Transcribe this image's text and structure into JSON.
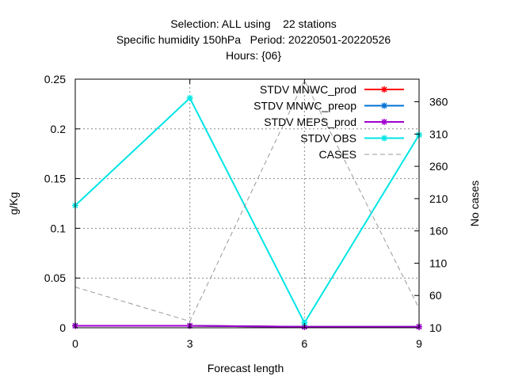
{
  "chart_data": {
    "type": "line",
    "title_lines": [
      "Selection: ALL using    22 stations",
      "Specific humidity 150hPa   Period: 20220501-20220526",
      "Hours: {06}"
    ],
    "xlabel": "Forecast length",
    "ylabel": "g/Kg",
    "y2label": "No cases",
    "x": [
      0,
      3,
      6,
      9
    ],
    "xlim": [
      0,
      9
    ],
    "xticks": [
      "0",
      "3",
      "6",
      "9"
    ],
    "ylim": [
      0,
      0.25
    ],
    "yticks": [
      "0",
      "0.05",
      "0.1",
      "0.15",
      "0.2",
      "0.25"
    ],
    "y2lim": [
      10,
      395
    ],
    "y2ticks": [
      "10",
      "60",
      "110",
      "160",
      "210",
      "260",
      "310",
      "360"
    ],
    "grid": true,
    "legend_position": "top-right",
    "series": [
      {
        "name": "STDV MNWC_prod",
        "color": "#ff0000",
        "axis": "y",
        "values": [
          0.002,
          0.002,
          0.001,
          0.001
        ]
      },
      {
        "name": "STDV MNWC_preop",
        "color": "#0072d4",
        "axis": "y",
        "values": [
          0.002,
          0.002,
          0.001,
          0.001
        ]
      },
      {
        "name": "STDV MEPS_prod",
        "color": "#a000d0",
        "axis": "y",
        "values": [
          0.002,
          0.002,
          0.001,
          0.001
        ]
      },
      {
        "name": "STDV OBS",
        "color": "#00e5e5",
        "axis": "y",
        "values": [
          0.123,
          0.231,
          0.005,
          0.194
        ]
      },
      {
        "name": "CASES",
        "color": "#999999",
        "axis": "y2",
        "dashed": true,
        "values": [
          73,
          20,
          393,
          40
        ]
      }
    ]
  }
}
